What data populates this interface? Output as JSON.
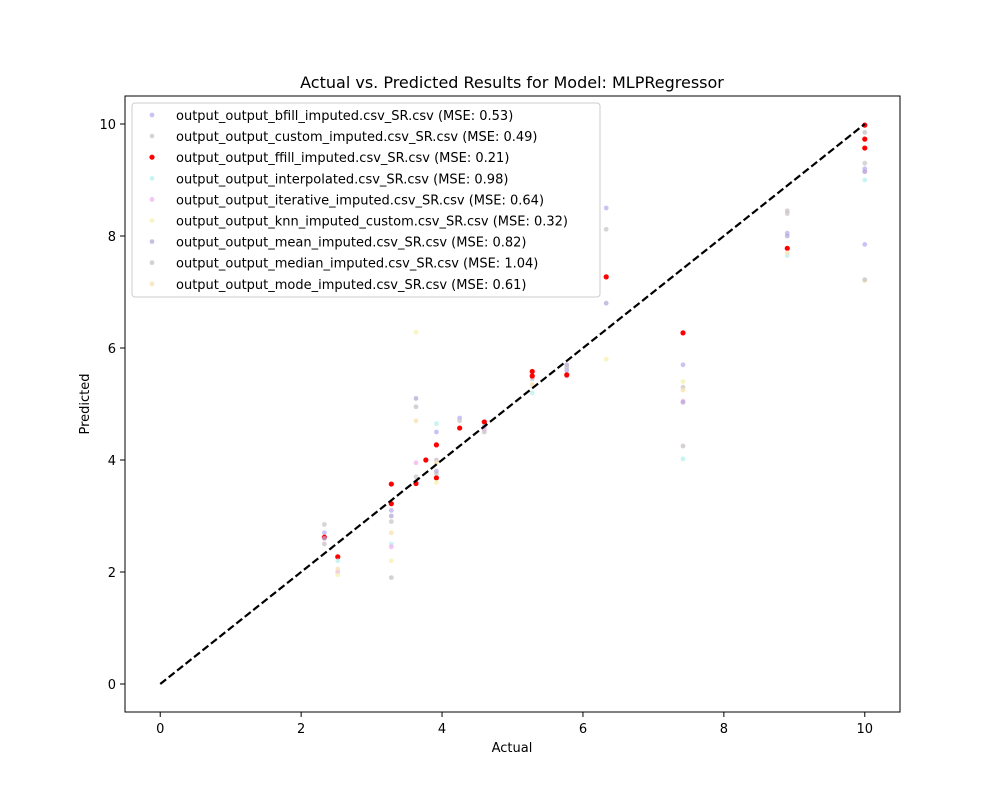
{
  "chart_data": {
    "type": "scatter",
    "title": "Actual vs. Predicted Results for Model: MLPRegressor",
    "xlabel": "Actual",
    "ylabel": "Predicted",
    "xlim": [
      -0.5,
      10.5
    ],
    "ylim": [
      -0.5,
      10.5
    ],
    "xticks": [
      0,
      2,
      4,
      6,
      8,
      10
    ],
    "yticks": [
      0,
      2,
      4,
      6,
      8,
      10
    ],
    "grid": false,
    "legend_position": "top-left",
    "reference_line": {
      "x": [
        0,
        10
      ],
      "y": [
        0,
        10
      ],
      "style": "dashed",
      "color": "#000000"
    },
    "series": [
      {
        "name": "output_output_bfill_imputed.csv_SR.csv (MSE: 0.53)",
        "color": "#b5b0f0",
        "points": [
          [
            2.33,
            2.7
          ],
          [
            3.28,
            3.1
          ],
          [
            3.63,
            3.6
          ],
          [
            3.92,
            4.5
          ],
          [
            4.25,
            4.75
          ],
          [
            5.28,
            5.5
          ],
          [
            5.77,
            5.6
          ],
          [
            6.33,
            8.5
          ],
          [
            7.42,
            5.7
          ],
          [
            8.9,
            8.05
          ],
          [
            10.0,
            7.85
          ],
          [
            10.0,
            9.2
          ]
        ]
      },
      {
        "name": "output_output_custom_imputed.csv_SR.csv (MSE: 0.49)",
        "color": "#c8c8c8",
        "points": [
          [
            2.33,
            2.85
          ],
          [
            3.28,
            2.9
          ],
          [
            3.63,
            3.7
          ],
          [
            3.92,
            3.75
          ],
          [
            4.25,
            4.7
          ],
          [
            5.28,
            5.45
          ],
          [
            5.77,
            5.5
          ],
          [
            6.33,
            8.12
          ],
          [
            7.42,
            5.3
          ],
          [
            8.9,
            8.4
          ],
          [
            10.0,
            9.3
          ]
        ]
      },
      {
        "name": "output_output_ffill_imputed.csv_SR.csv (MSE: 0.21)",
        "color": "#ff0000",
        "points": [
          [
            2.33,
            2.62
          ],
          [
            2.52,
            2.27
          ],
          [
            3.28,
            3.57
          ],
          [
            3.28,
            3.22
          ],
          [
            3.63,
            3.58
          ],
          [
            3.77,
            4.0
          ],
          [
            3.92,
            3.68
          ],
          [
            3.92,
            4.27
          ],
          [
            4.25,
            4.57
          ],
          [
            4.6,
            4.68
          ],
          [
            5.28,
            5.58
          ],
          [
            5.28,
            5.5
          ],
          [
            5.77,
            5.52
          ],
          [
            6.33,
            7.27
          ],
          [
            7.42,
            6.27
          ],
          [
            8.9,
            7.78
          ],
          [
            10.0,
            9.98
          ],
          [
            10.0,
            9.73
          ],
          [
            10.0,
            9.57
          ]
        ]
      },
      {
        "name": "output_output_interpolated.csv_SR.csv (MSE: 0.98)",
        "color": "#b8f0f0",
        "points": [
          [
            2.52,
            2.2
          ],
          [
            3.28,
            2.5
          ],
          [
            3.92,
            4.65
          ],
          [
            5.28,
            5.2
          ],
          [
            7.42,
            4.02
          ],
          [
            8.9,
            7.65
          ],
          [
            10.0,
            9.0
          ]
        ]
      },
      {
        "name": "output_output_iterative_imputed.csv_SR.csv (MSE: 0.64)",
        "color": "#f0b0f0",
        "points": [
          [
            2.52,
            2.0
          ],
          [
            3.28,
            2.45
          ],
          [
            3.63,
            3.95
          ],
          [
            4.6,
            4.55
          ],
          [
            7.42,
            5.05
          ],
          [
            10.0,
            9.15
          ]
        ]
      },
      {
        "name": "output_output_knn_imputed_custom.csv_SR.csv (MSE: 0.32)",
        "color": "#f5f0b0",
        "points": [
          [
            2.52,
            1.95
          ],
          [
            3.28,
            2.2
          ],
          [
            3.63,
            6.28
          ],
          [
            3.92,
            3.6
          ],
          [
            6.33,
            5.8
          ],
          [
            7.42,
            5.4
          ],
          [
            10.0,
            7.2
          ]
        ]
      },
      {
        "name": "output_output_mean_imputed.csv_SR.csv (MSE: 0.82)",
        "color": "#b8a8d8",
        "points": [
          [
            2.33,
            2.6
          ],
          [
            3.28,
            3.0
          ],
          [
            3.63,
            5.1
          ],
          [
            3.92,
            3.8
          ],
          [
            4.6,
            4.6
          ],
          [
            5.77,
            5.7
          ],
          [
            6.33,
            6.8
          ],
          [
            7.42,
            5.03
          ],
          [
            8.9,
            8.0
          ],
          [
            10.0,
            9.15
          ]
        ]
      },
      {
        "name": "output_output_median_imputed.csv_SR.csv (MSE: 1.04)",
        "color": "#c8c0c8",
        "points": [
          [
            2.33,
            2.5
          ],
          [
            3.28,
            1.9
          ],
          [
            3.63,
            4.95
          ],
          [
            3.92,
            4.0
          ],
          [
            4.6,
            4.5
          ],
          [
            5.77,
            5.65
          ],
          [
            7.42,
            4.25
          ],
          [
            8.9,
            8.45
          ],
          [
            10.0,
            7.22
          ],
          [
            10.0,
            9.85
          ]
        ]
      },
      {
        "name": "output_output_mode_imputed.csv_SR.csv (MSE: 0.61)",
        "color": "#f8e0b0",
        "points": [
          [
            2.52,
            2.05
          ],
          [
            3.28,
            2.7
          ],
          [
            3.63,
            4.7
          ],
          [
            3.92,
            3.95
          ],
          [
            5.28,
            5.35
          ],
          [
            7.42,
            5.25
          ],
          [
            8.9,
            7.7
          ]
        ]
      }
    ]
  }
}
